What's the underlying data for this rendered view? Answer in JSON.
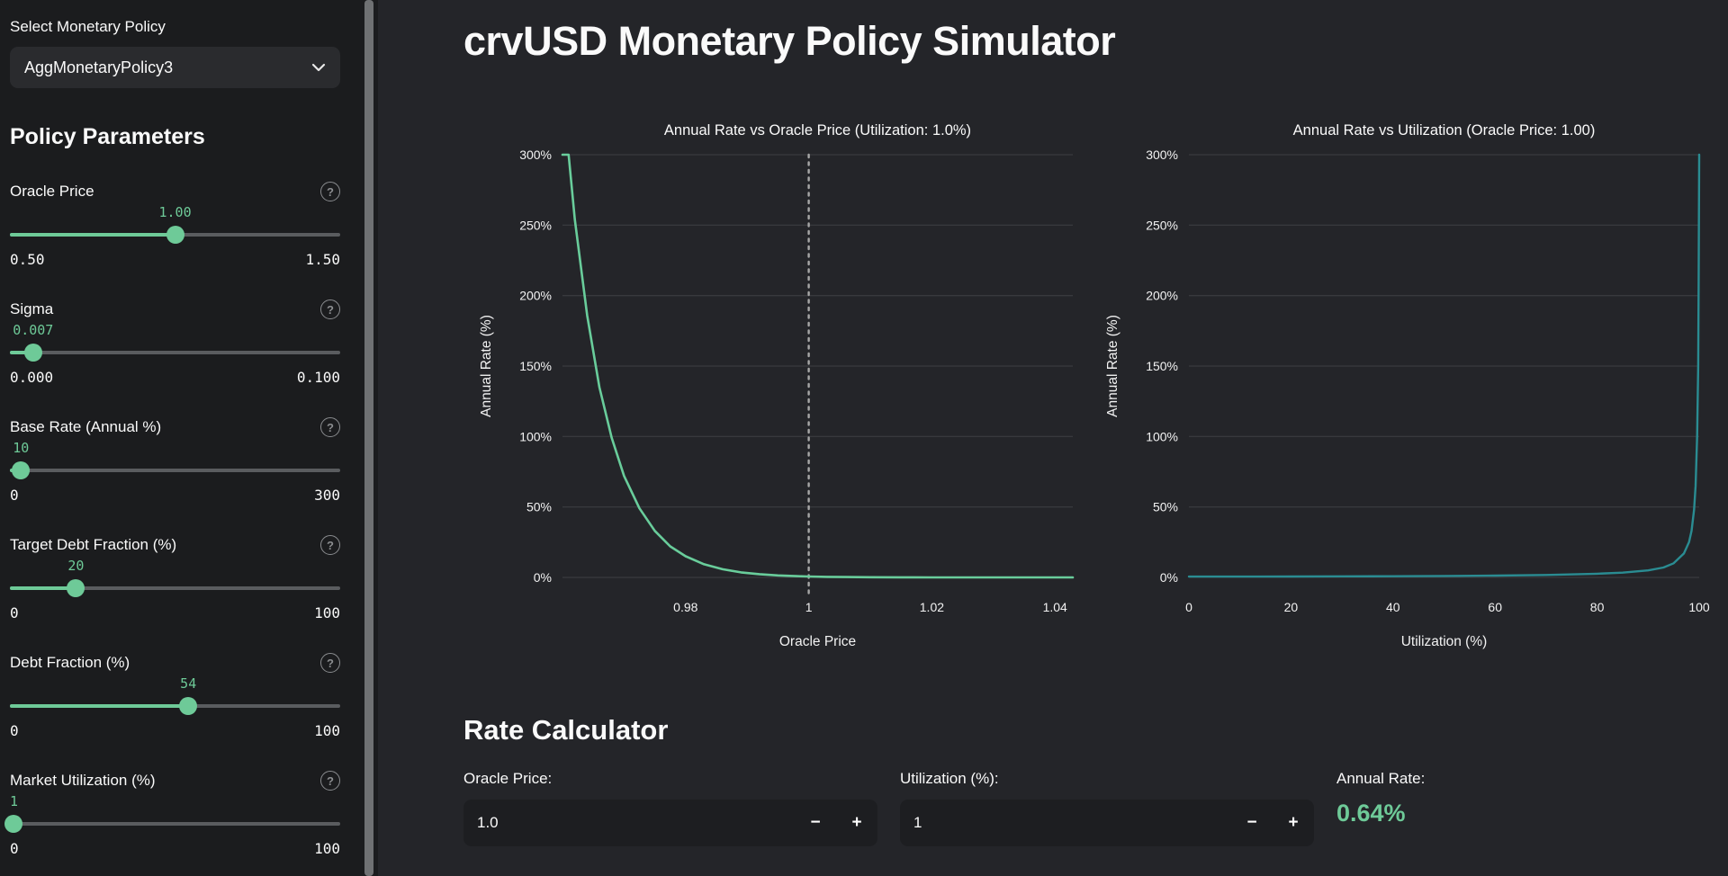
{
  "app": {
    "title": "crvUSD Monetary Policy Simulator"
  },
  "icons": {
    "help": "?"
  },
  "colors": {
    "accent_green": "#6eca98",
    "left_line": "#69cd9b",
    "right_line": "#2a8c92",
    "rate_green": "#6eca98"
  },
  "sidebar": {
    "select_label": "Select Monetary Policy",
    "select_value": "AggMonetaryPolicy3",
    "section_title": "Policy Parameters",
    "sliders": [
      {
        "label": "Oracle Price",
        "value": "1.00",
        "min": "0.50",
        "max": "1.50",
        "percent": 50
      },
      {
        "label": "Sigma",
        "value": "0.007",
        "min": "0.000",
        "max": "0.100",
        "percent": 7
      },
      {
        "label": "Base Rate (Annual %)",
        "value": "10",
        "min": "0",
        "max": "300",
        "percent": 3.33
      },
      {
        "label": "Target Debt Fraction (%)",
        "value": "20",
        "min": "0",
        "max": "100",
        "percent": 20
      },
      {
        "label": "Debt Fraction (%)",
        "value": "54",
        "min": "0",
        "max": "100",
        "percent": 54
      },
      {
        "label": "Market Utilization (%)",
        "value": "1",
        "min": "0",
        "max": "100",
        "percent": 1
      }
    ]
  },
  "calculator": {
    "title": "Rate Calculator",
    "oracle_price": {
      "label": "Oracle Price:",
      "value": "1.0",
      "minus": "−",
      "plus": "+"
    },
    "utilization": {
      "label": "Utilization (%):",
      "value": "1",
      "minus": "−",
      "plus": "+"
    },
    "annual_rate": {
      "label": "Annual Rate:",
      "value": "0.64%"
    }
  },
  "chart_data": [
    {
      "type": "line",
      "title": "Annual Rate vs Oracle Price (Utilization: 1.0%)",
      "xlabel": "Oracle Price",
      "ylabel": "Annual Rate (%)",
      "xlim": [
        0.96,
        1.0429
      ],
      "ylim": [
        0,
        300
      ],
      "yticks": [
        0,
        50,
        100,
        150,
        200,
        250,
        300
      ],
      "ytick_labels": [
        "0%",
        "50%",
        "100%",
        "150%",
        "200%",
        "250%",
        "300%"
      ],
      "xticks": [
        0.98,
        1,
        1.02,
        1.04
      ],
      "xtick_labels": [
        "0.98",
        "1",
        "1.02",
        "1.04"
      ],
      "grid": true,
      "legend": "none",
      "vline": {
        "x": 1,
        "style": "dotted",
        "color": "#a8a8a8"
      },
      "line_color": "#69cd9b",
      "line_width": 2.6,
      "points": [
        [
          0.96,
          300
        ],
        [
          0.961,
          300
        ],
        [
          0.962,
          254
        ],
        [
          0.964,
          186
        ],
        [
          0.966,
          135
        ],
        [
          0.968,
          99
        ],
        [
          0.97,
          72
        ],
        [
          0.9725,
          49
        ],
        [
          0.975,
          33
        ],
        [
          0.9775,
          22
        ],
        [
          0.98,
          15
        ],
        [
          0.983,
          9.3
        ],
        [
          0.986,
          5.8
        ],
        [
          0.989,
          3.6
        ],
        [
          0.992,
          2.3
        ],
        [
          0.995,
          1.4
        ],
        [
          0.998,
          0.9
        ],
        [
          1.0,
          0.64
        ],
        [
          1.003,
          0.4
        ],
        [
          1.006,
          0.25
        ],
        [
          1.01,
          0.13
        ],
        [
          1.015,
          0.06
        ],
        [
          1.02,
          0.03
        ],
        [
          1.03,
          0.01
        ],
        [
          1.0429,
          0.0
        ]
      ]
    },
    {
      "type": "line",
      "title": "Annual Rate vs Utilization (Oracle Price: 1.00)",
      "xlabel": "Utilization (%)",
      "ylabel": "Annual Rate (%)",
      "xlim": [
        0,
        100
      ],
      "ylim": [
        0,
        300
      ],
      "yticks": [
        0,
        50,
        100,
        150,
        200,
        250,
        300
      ],
      "ytick_labels": [
        "0%",
        "50%",
        "100%",
        "150%",
        "200%",
        "250%",
        "300%"
      ],
      "xticks": [
        0,
        20,
        40,
        60,
        80,
        100
      ],
      "xtick_labels": [
        "0",
        "20",
        "40",
        "60",
        "80",
        "100"
      ],
      "grid": true,
      "legend": "none",
      "line_color": "#2a8c92",
      "line_width": 2.4,
      "points": [
        [
          0,
          0.55
        ],
        [
          10,
          0.6
        ],
        [
          20,
          0.66
        ],
        [
          30,
          0.74
        ],
        [
          40,
          0.85
        ],
        [
          50,
          1.0
        ],
        [
          60,
          1.25
        ],
        [
          70,
          1.7
        ],
        [
          80,
          2.6
        ],
        [
          85,
          3.4
        ],
        [
          90,
          5.0
        ],
        [
          93,
          7.0
        ],
        [
          95,
          10.0
        ],
        [
          97,
          17.0
        ],
        [
          98,
          25.0
        ],
        [
          98.5,
          33.0
        ],
        [
          99,
          48.0
        ],
        [
          99.3,
          65.0
        ],
        [
          99.6,
          100.0
        ],
        [
          99.8,
          150.0
        ],
        [
          99.9,
          210.0
        ],
        [
          100,
          300
        ]
      ]
    }
  ]
}
